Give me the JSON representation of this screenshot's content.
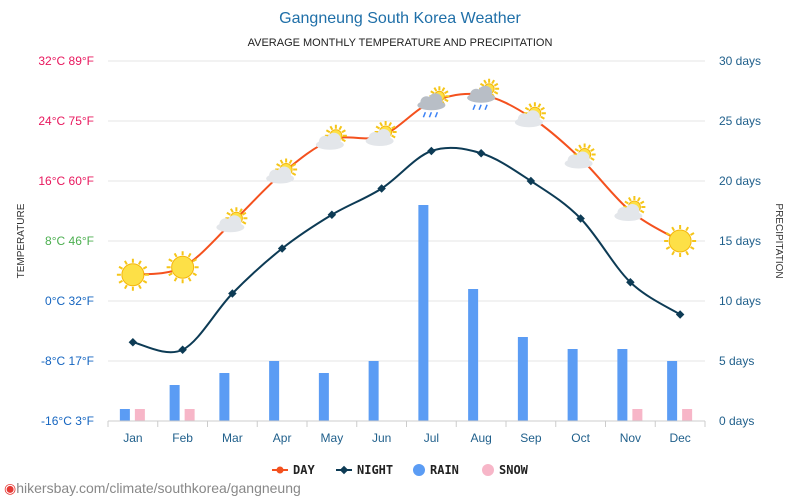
{
  "chart_data": {
    "type": "line",
    "title": "Gangneung South Korea Weather",
    "subtitle": "AVERAGE MONTHLY TEMPERATURE AND PRECIPITATION",
    "ylabel_left": "TEMPERATURE",
    "ylabel_right": "PRECIPITATION",
    "categories": [
      "Jan",
      "Feb",
      "Mar",
      "Apr",
      "May",
      "Jun",
      "Jul",
      "Aug",
      "Sep",
      "Oct",
      "Nov",
      "Dec"
    ],
    "y_left": {
      "range": [
        -16,
        32
      ],
      "ticks": [
        {
          "value": 32,
          "label": "32°C 89°F",
          "color": "#e8175d"
        },
        {
          "value": 24,
          "label": "24°C 75°F",
          "color": "#e8175d"
        },
        {
          "value": 16,
          "label": "16°C 60°F",
          "color": "#e8175d"
        },
        {
          "value": 8,
          "label": "8°C 46°F",
          "color": "#4caf50"
        },
        {
          "value": 0,
          "label": "0°C 32°F",
          "color": "#1565c0"
        },
        {
          "value": -8,
          "label": "-8°C 17°F",
          "color": "#1565c0"
        },
        {
          "value": -16,
          "label": "-16°C 3°F",
          "color": "#1565c0"
        }
      ]
    },
    "y_right": {
      "range": [
        0,
        30
      ],
      "ticks": [
        {
          "value": 30,
          "label": "30 days"
        },
        {
          "value": 25,
          "label": "25 days"
        },
        {
          "value": 20,
          "label": "20 days"
        },
        {
          "value": 15,
          "label": "15 days"
        },
        {
          "value": 10,
          "label": "10 days"
        },
        {
          "value": 5,
          "label": "5 days"
        },
        {
          "value": 0,
          "label": "0 days"
        }
      ]
    },
    "series": [
      {
        "name": "DAY",
        "kind": "line",
        "axis": "left",
        "color": "#f4511e",
        "values": [
          3.5,
          4.5,
          10.5,
          17,
          21.5,
          22,
          26.5,
          27.5,
          24.5,
          19,
          12,
          8
        ]
      },
      {
        "name": "NIGHT",
        "kind": "line",
        "axis": "left",
        "color": "#0d3b55",
        "values": [
          -5.5,
          -6.5,
          1,
          7,
          11.5,
          15,
          20,
          19.7,
          16,
          11,
          2.5,
          -1.8
        ]
      },
      {
        "name": "RAIN",
        "kind": "bar",
        "axis": "right",
        "color": "#5b9cf4",
        "values": [
          1,
          3,
          4,
          5,
          4,
          5,
          18,
          11,
          7,
          6,
          6,
          5
        ]
      },
      {
        "name": "SNOW",
        "kind": "bar",
        "axis": "right",
        "color": "#f7b6c8",
        "values": [
          1,
          1,
          0,
          0,
          0,
          0,
          0,
          0,
          0,
          0,
          1,
          1
        ]
      }
    ],
    "weather_icons": [
      "sun-icon",
      "sun-icon",
      "partly-cloudy-icon",
      "partly-cloudy-icon",
      "partly-cloudy-icon",
      "partly-cloudy-icon",
      "rain-cloud-icon",
      "rain-cloud-icon",
      "partly-cloudy-icon",
      "partly-cloudy-icon",
      "partly-cloudy-icon",
      "sun-icon"
    ],
    "grid": true,
    "legend_position": "bottom"
  },
  "footer": {
    "url": "hikersbay.com/climate/southkorea/gangneung",
    "icon": "map-pin-icon"
  }
}
